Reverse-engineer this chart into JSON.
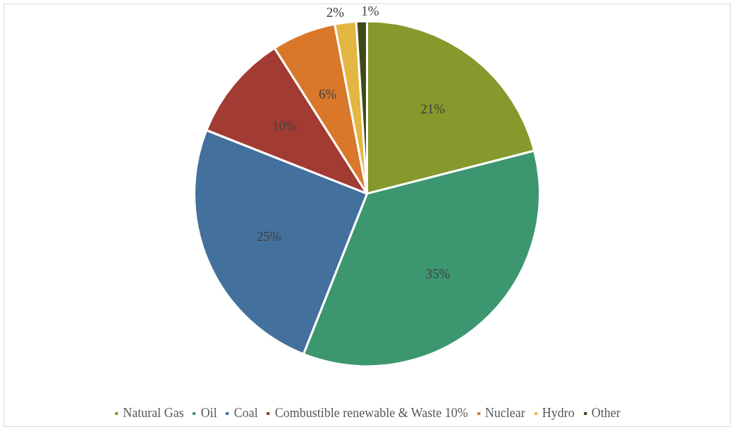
{
  "chart_data": {
    "type": "pie",
    "categories": [
      "Natural Gas",
      "Oil",
      "Coal",
      "Combustible renewable & Waste 10%",
      "Nuclear",
      "Hydro",
      "Other"
    ],
    "values": [
      21,
      35,
      25,
      10,
      6,
      2,
      1
    ],
    "value_labels": [
      "21%",
      "35%",
      "25%",
      "10%",
      "6%",
      "2%",
      "1%"
    ],
    "colors": [
      "#86992c",
      "#3c9670",
      "#43709d",
      "#a23b32",
      "#d9772a",
      "#e3b541",
      "#3e4a1a"
    ],
    "legend": "bottom"
  }
}
